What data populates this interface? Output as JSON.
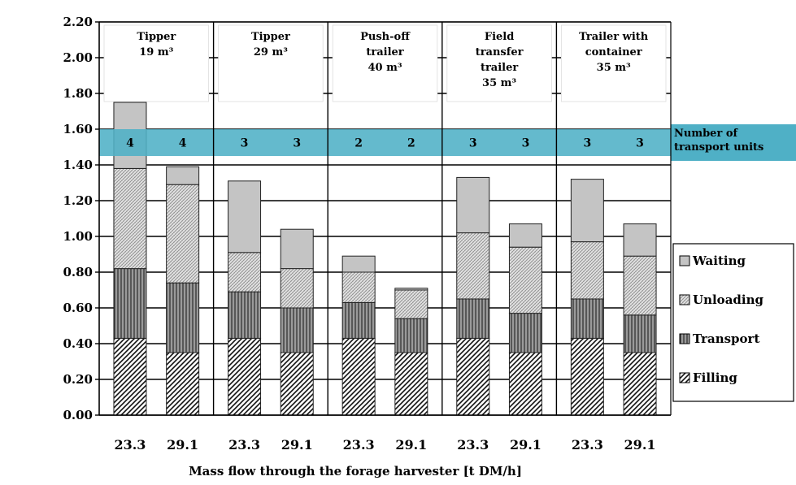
{
  "chart_data": {
    "type": "bar",
    "stacked": true,
    "xlabel": "Mass flow through the forage harvester [t DM/h]",
    "ylabel": "",
    "ylim": [
      0,
      2.2
    ],
    "yticks": [
      "0.00",
      "0.20",
      "0.40",
      "0.60",
      "0.80",
      "1.00",
      "1.20",
      "1.40",
      "1.60",
      "1.80",
      "2.00",
      "2.20"
    ],
    "grid": true,
    "legend_position": "right",
    "groups": [
      {
        "title": [
          "Tipper",
          "19 m³"
        ],
        "categories": [
          "23.3",
          "29.1"
        ],
        "units": [
          "4",
          "4"
        ]
      },
      {
        "title": [
          "Tipper",
          "29 m³"
        ],
        "categories": [
          "23.3",
          "29.1"
        ],
        "units": [
          "3",
          "3"
        ]
      },
      {
        "title": [
          "Push-off",
          "trailer",
          "40 m³"
        ],
        "categories": [
          "23.3",
          "29.1"
        ],
        "units": [
          "2",
          "2"
        ]
      },
      {
        "title": [
          "Field",
          "transfer",
          "trailer",
          "35 m³"
        ],
        "categories": [
          "23.3",
          "29.1"
        ],
        "units": [
          "3",
          "3"
        ]
      },
      {
        "title": [
          "Trailer with",
          "container",
          "35 m³"
        ],
        "categories": [
          "23.3",
          "29.1"
        ],
        "units": [
          "3",
          "3"
        ]
      }
    ],
    "series": [
      {
        "name": "Filling",
        "values": [
          0.43,
          0.35,
          0.43,
          0.35,
          0.43,
          0.35,
          0.43,
          0.35,
          0.43,
          0.35
        ]
      },
      {
        "name": "Transport",
        "values": [
          0.39,
          0.39,
          0.26,
          0.25,
          0.2,
          0.19,
          0.22,
          0.22,
          0.22,
          0.21
        ]
      },
      {
        "name": "Unloading",
        "values": [
          0.56,
          0.55,
          0.22,
          0.22,
          0.17,
          0.16,
          0.37,
          0.37,
          0.32,
          0.33
        ]
      },
      {
        "name": "Waiting",
        "values": [
          0.37,
          0.1,
          0.4,
          0.22,
          0.09,
          0.01,
          0.31,
          0.13,
          0.35,
          0.18
        ]
      }
    ],
    "band": {
      "label": [
        "Number of",
        "transport units"
      ],
      "y_range": [
        1.45,
        1.6
      ],
      "color": "#4fb0c6"
    }
  },
  "colors": {
    "band": "#4fb0c6",
    "waiting": "#c8c8c8",
    "unloading": "#d8d8d8",
    "transport": "#8a8a8a",
    "filling": "#ffffff"
  }
}
